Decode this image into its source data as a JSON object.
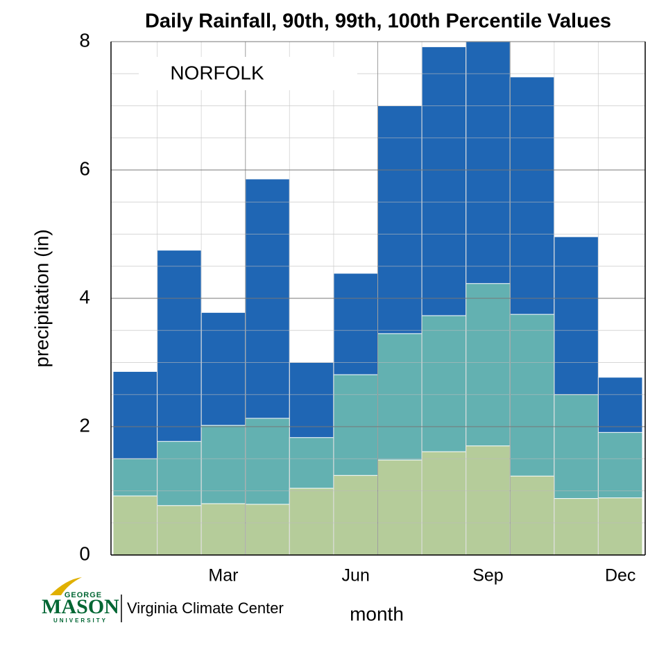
{
  "chart_data": {
    "type": "bar",
    "title": "Daily Rainfall, 90th, 99th, 100th Percentile Values",
    "annotation": "NORFOLK",
    "xlabel": "month",
    "ylabel": "precipitation (in)",
    "categories": [
      null,
      null,
      "Mar",
      null,
      null,
      "Jun",
      null,
      null,
      "Sep",
      null,
      null,
      "Dec"
    ],
    "series": [
      {
        "color": "#1f66b4",
        "values": [
          2.86,
          4.75,
          3.78,
          5.86,
          3.0,
          4.39,
          7.0,
          7.92,
          8.0,
          7.45,
          4.96,
          2.77
        ]
      },
      {
        "color": "#63b1b1",
        "values": [
          1.5,
          1.77,
          2.02,
          2.13,
          1.83,
          2.81,
          3.45,
          3.73,
          4.23,
          3.75,
          2.5,
          1.91
        ]
      },
      {
        "color": "#b5cc9a",
        "values": [
          0.92,
          0.77,
          0.8,
          0.79,
          1.04,
          1.24,
          1.48,
          1.61,
          1.7,
          1.23,
          0.88,
          0.89
        ]
      }
    ],
    "ylim": [
      0,
      8
    ],
    "yticks": [
      0,
      2,
      4,
      6,
      8
    ],
    "grid": true
  },
  "logo": {
    "top": "GEORGE",
    "main": "MASON",
    "bottom": "UNIVERSITY",
    "org": "Virginia Climate Center"
  }
}
